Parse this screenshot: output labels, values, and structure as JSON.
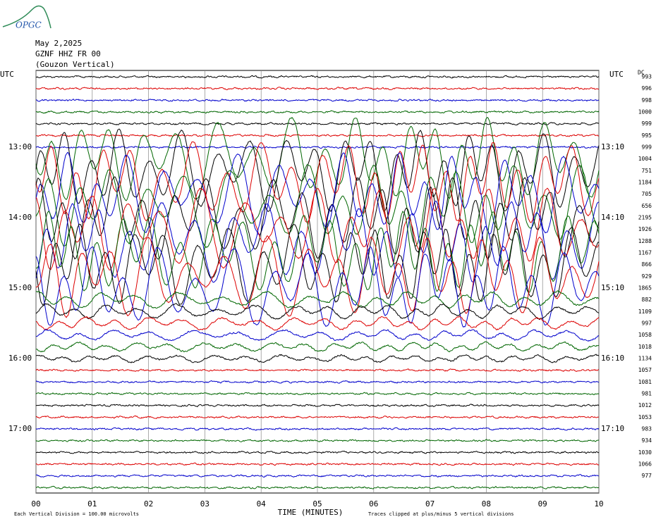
{
  "header": {
    "logo": "OPGC",
    "date": "May 2,2025",
    "station": "GZNF HHZ FR 00",
    "component": "(Gouzon Vertical)"
  },
  "axis": {
    "utc_left": "UTC",
    "utc_right": "UTC",
    "dc_label": "DC"
  },
  "left_labels": [
    "13:00",
    "14:00",
    "15:00",
    "16:00",
    "17:00"
  ],
  "right_labels": [
    "13:10",
    "14:10",
    "15:10",
    "16:10",
    "17:10"
  ],
  "dc_values": [
    993,
    996,
    998,
    1000,
    999,
    995,
    999,
    1004,
    751,
    1184,
    705,
    656,
    2195,
    1926,
    1288,
    1167,
    866,
    929,
    1865,
    882,
    1109,
    997,
    1058,
    1018,
    1134,
    1057,
    1081,
    981,
    1012,
    1053,
    983,
    934,
    1030,
    1066,
    977
  ],
  "x_labels": [
    "00",
    "01",
    "02",
    "03",
    "04",
    "05",
    "06",
    "07",
    "08",
    "09",
    "10"
  ],
  "x_title": "TIME (MINUTES)",
  "footer_left": "Each Vertical Division =  100.00 microvolts",
  "footer_right": "Traces clipped at plus/minus 5 vertical divisions"
}
